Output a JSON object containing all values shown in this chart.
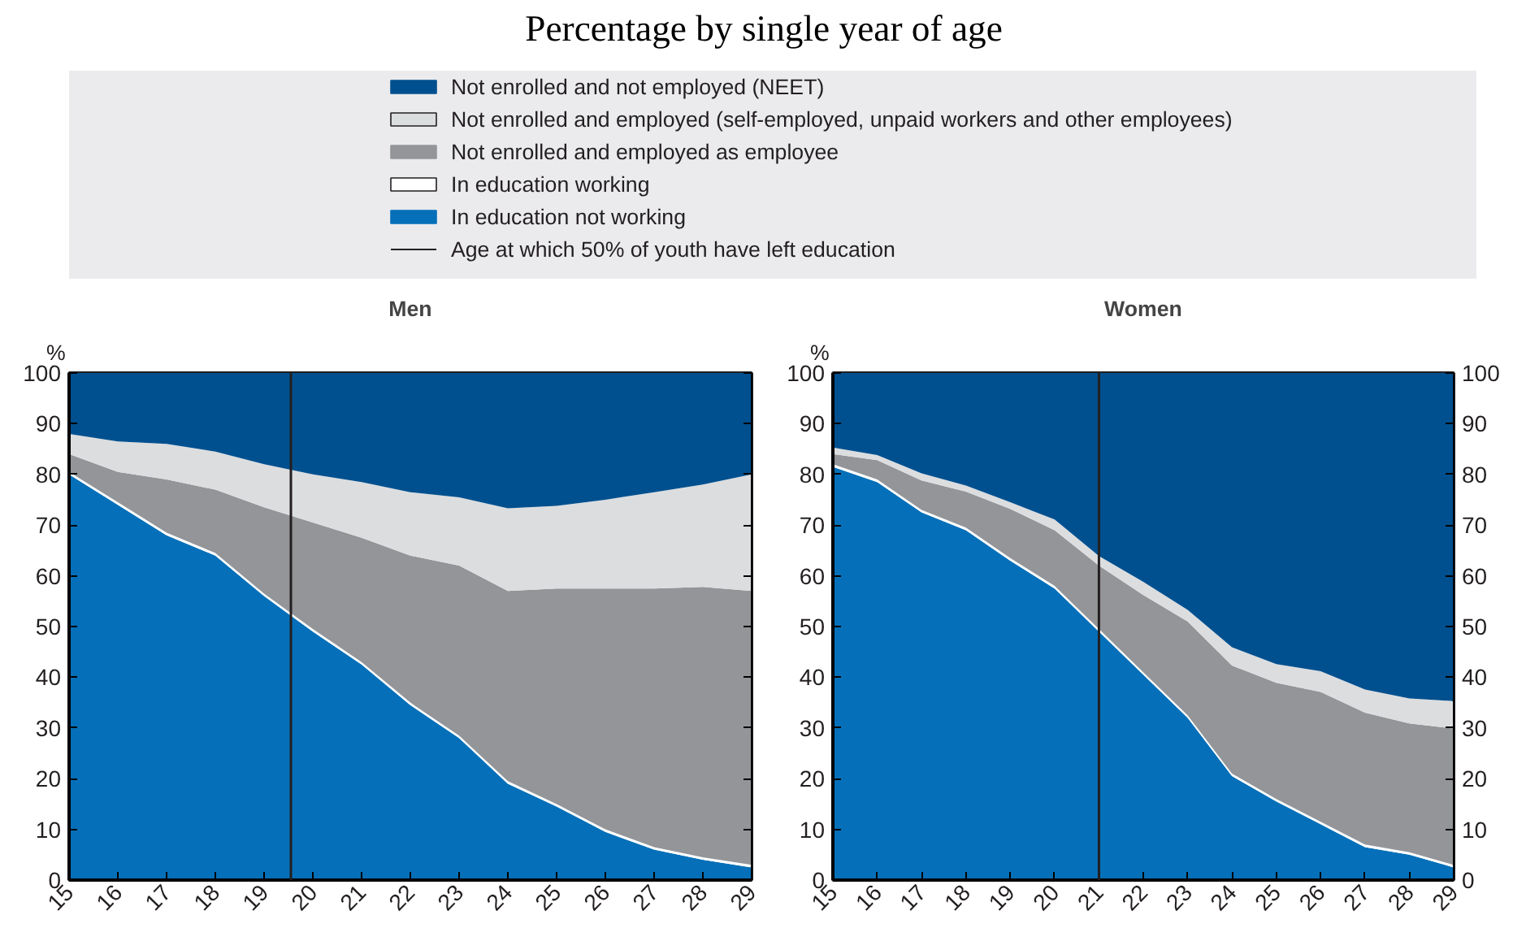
{
  "chart_data": [
    {
      "type": "area",
      "title": "Percentage by single year of age",
      "subtitle": "Men",
      "ylabel": "%",
      "stacked": true,
      "legend": "top",
      "xlim": [
        15,
        29
      ],
      "xticks": [
        15,
        16,
        17,
        18,
        19,
        20,
        21,
        22,
        23,
        24,
        25,
        26,
        27,
        28,
        29
      ],
      "ylim": [
        0,
        100
      ],
      "yticks": [
        0,
        10,
        20,
        30,
        40,
        50,
        60,
        70,
        80,
        90,
        100
      ],
      "x": [
        15,
        16,
        17,
        18,
        19,
        20,
        21,
        22,
        23,
        24,
        25,
        26,
        27,
        28,
        29
      ],
      "series": [
        {
          "name": "In education not working",
          "color": "#0570b9",
          "values": [
            80,
            74,
            68,
            64,
            56,
            49,
            42.5,
            34.5,
            28,
            19,
            14.5,
            9.5,
            6,
            4,
            2.5
          ]
        },
        {
          "name": "In education working",
          "color": "#ffffff",
          "values": [
            0.5,
            0.5,
            0.5,
            0.5,
            0.5,
            0.5,
            0.5,
            0.5,
            0.5,
            0.5,
            0.5,
            0.5,
            0.5,
            0.5,
            0.5
          ]
        },
        {
          "name": "Not enrolled and employed as employee",
          "color": "#939598",
          "values": [
            3.5,
            6,
            10.5,
            12.5,
            17,
            21,
            24.5,
            29,
            33.5,
            37.5,
            42.5,
            47.5,
            51,
            53.3,
            54
          ]
        },
        {
          "name": "Not enrolled and employed (self-employed, unpaid workers and other employees)",
          "color": "#dcdddf",
          "values": [
            4,
            6,
            7,
            7.5,
            8.5,
            9.5,
            11,
            12.5,
            13.5,
            16.3,
            16.3,
            17.5,
            19,
            20.2,
            23
          ]
        },
        {
          "name": "Not enrolled and not employed (NEET)",
          "color": "#00508f",
          "values": [
            12,
            13.5,
            14,
            15.5,
            18,
            20,
            21.5,
            23.5,
            24.5,
            26.7,
            26.2,
            25,
            23.5,
            22,
            20
          ]
        }
      ],
      "ref_lines": [
        {
          "axis": "x",
          "value": 19.55,
          "label": "Age at which 50% of youth have left education",
          "color": "#231f20"
        }
      ]
    },
    {
      "type": "area",
      "subtitle": "Women",
      "ylabel": "%",
      "stacked": true,
      "xlim": [
        15,
        29
      ],
      "xticks": [
        15,
        16,
        17,
        18,
        19,
        20,
        21,
        22,
        23,
        24,
        25,
        26,
        27,
        28,
        29
      ],
      "ylim": [
        0,
        100
      ],
      "yticks": [
        0,
        10,
        20,
        30,
        40,
        50,
        60,
        70,
        80,
        90,
        100
      ],
      "y2lim": [
        0,
        100
      ],
      "y2ticks": [
        0,
        10,
        20,
        30,
        40,
        50,
        60,
        70,
        80,
        90,
        100
      ],
      "x": [
        15,
        16,
        17,
        18,
        19,
        20,
        21,
        22,
        23,
        24,
        25,
        26,
        27,
        28,
        29
      ],
      "series": [
        {
          "color": "#0570b9",
          "values": [
            81.5,
            78.5,
            72.5,
            69,
            63,
            57.5,
            49,
            40.5,
            32,
            20.5,
            15.5,
            11,
            6.5,
            5,
            2.5
          ]
        },
        {
          "color": "#ffffff",
          "values": [
            0.5,
            0.5,
            0.5,
            0.5,
            0.5,
            0.5,
            0.5,
            0.5,
            0.5,
            0.5,
            0.5,
            0.5,
            0.5,
            0.5,
            0.5
          ]
        },
        {
          "color": "#939598",
          "values": [
            2,
            3.8,
            5.8,
            7.1,
            9.7,
            11,
            12.5,
            15.2,
            18.5,
            21.3,
            22.9,
            25.6,
            26,
            25.4,
            26.9
          ]
        },
        {
          "color": "#dcdddf",
          "values": [
            1.3,
            1,
            1.4,
            1.2,
            1.3,
            2.1,
            1.9,
            2.6,
            2.3,
            3.6,
            3.7,
            4.1,
            4.6,
            4.9,
            5.4
          ]
        },
        {
          "color": "#00508f",
          "values": [
            14.7,
            16.2,
            19.8,
            22.2,
            25.5,
            28.9,
            36.1,
            41.2,
            46.7,
            54.1,
            57.4,
            58.8,
            62.4,
            64.2,
            64.7
          ]
        }
      ],
      "ref_lines": [
        {
          "axis": "x",
          "value": 21,
          "color": "#231f20"
        }
      ]
    }
  ]
}
